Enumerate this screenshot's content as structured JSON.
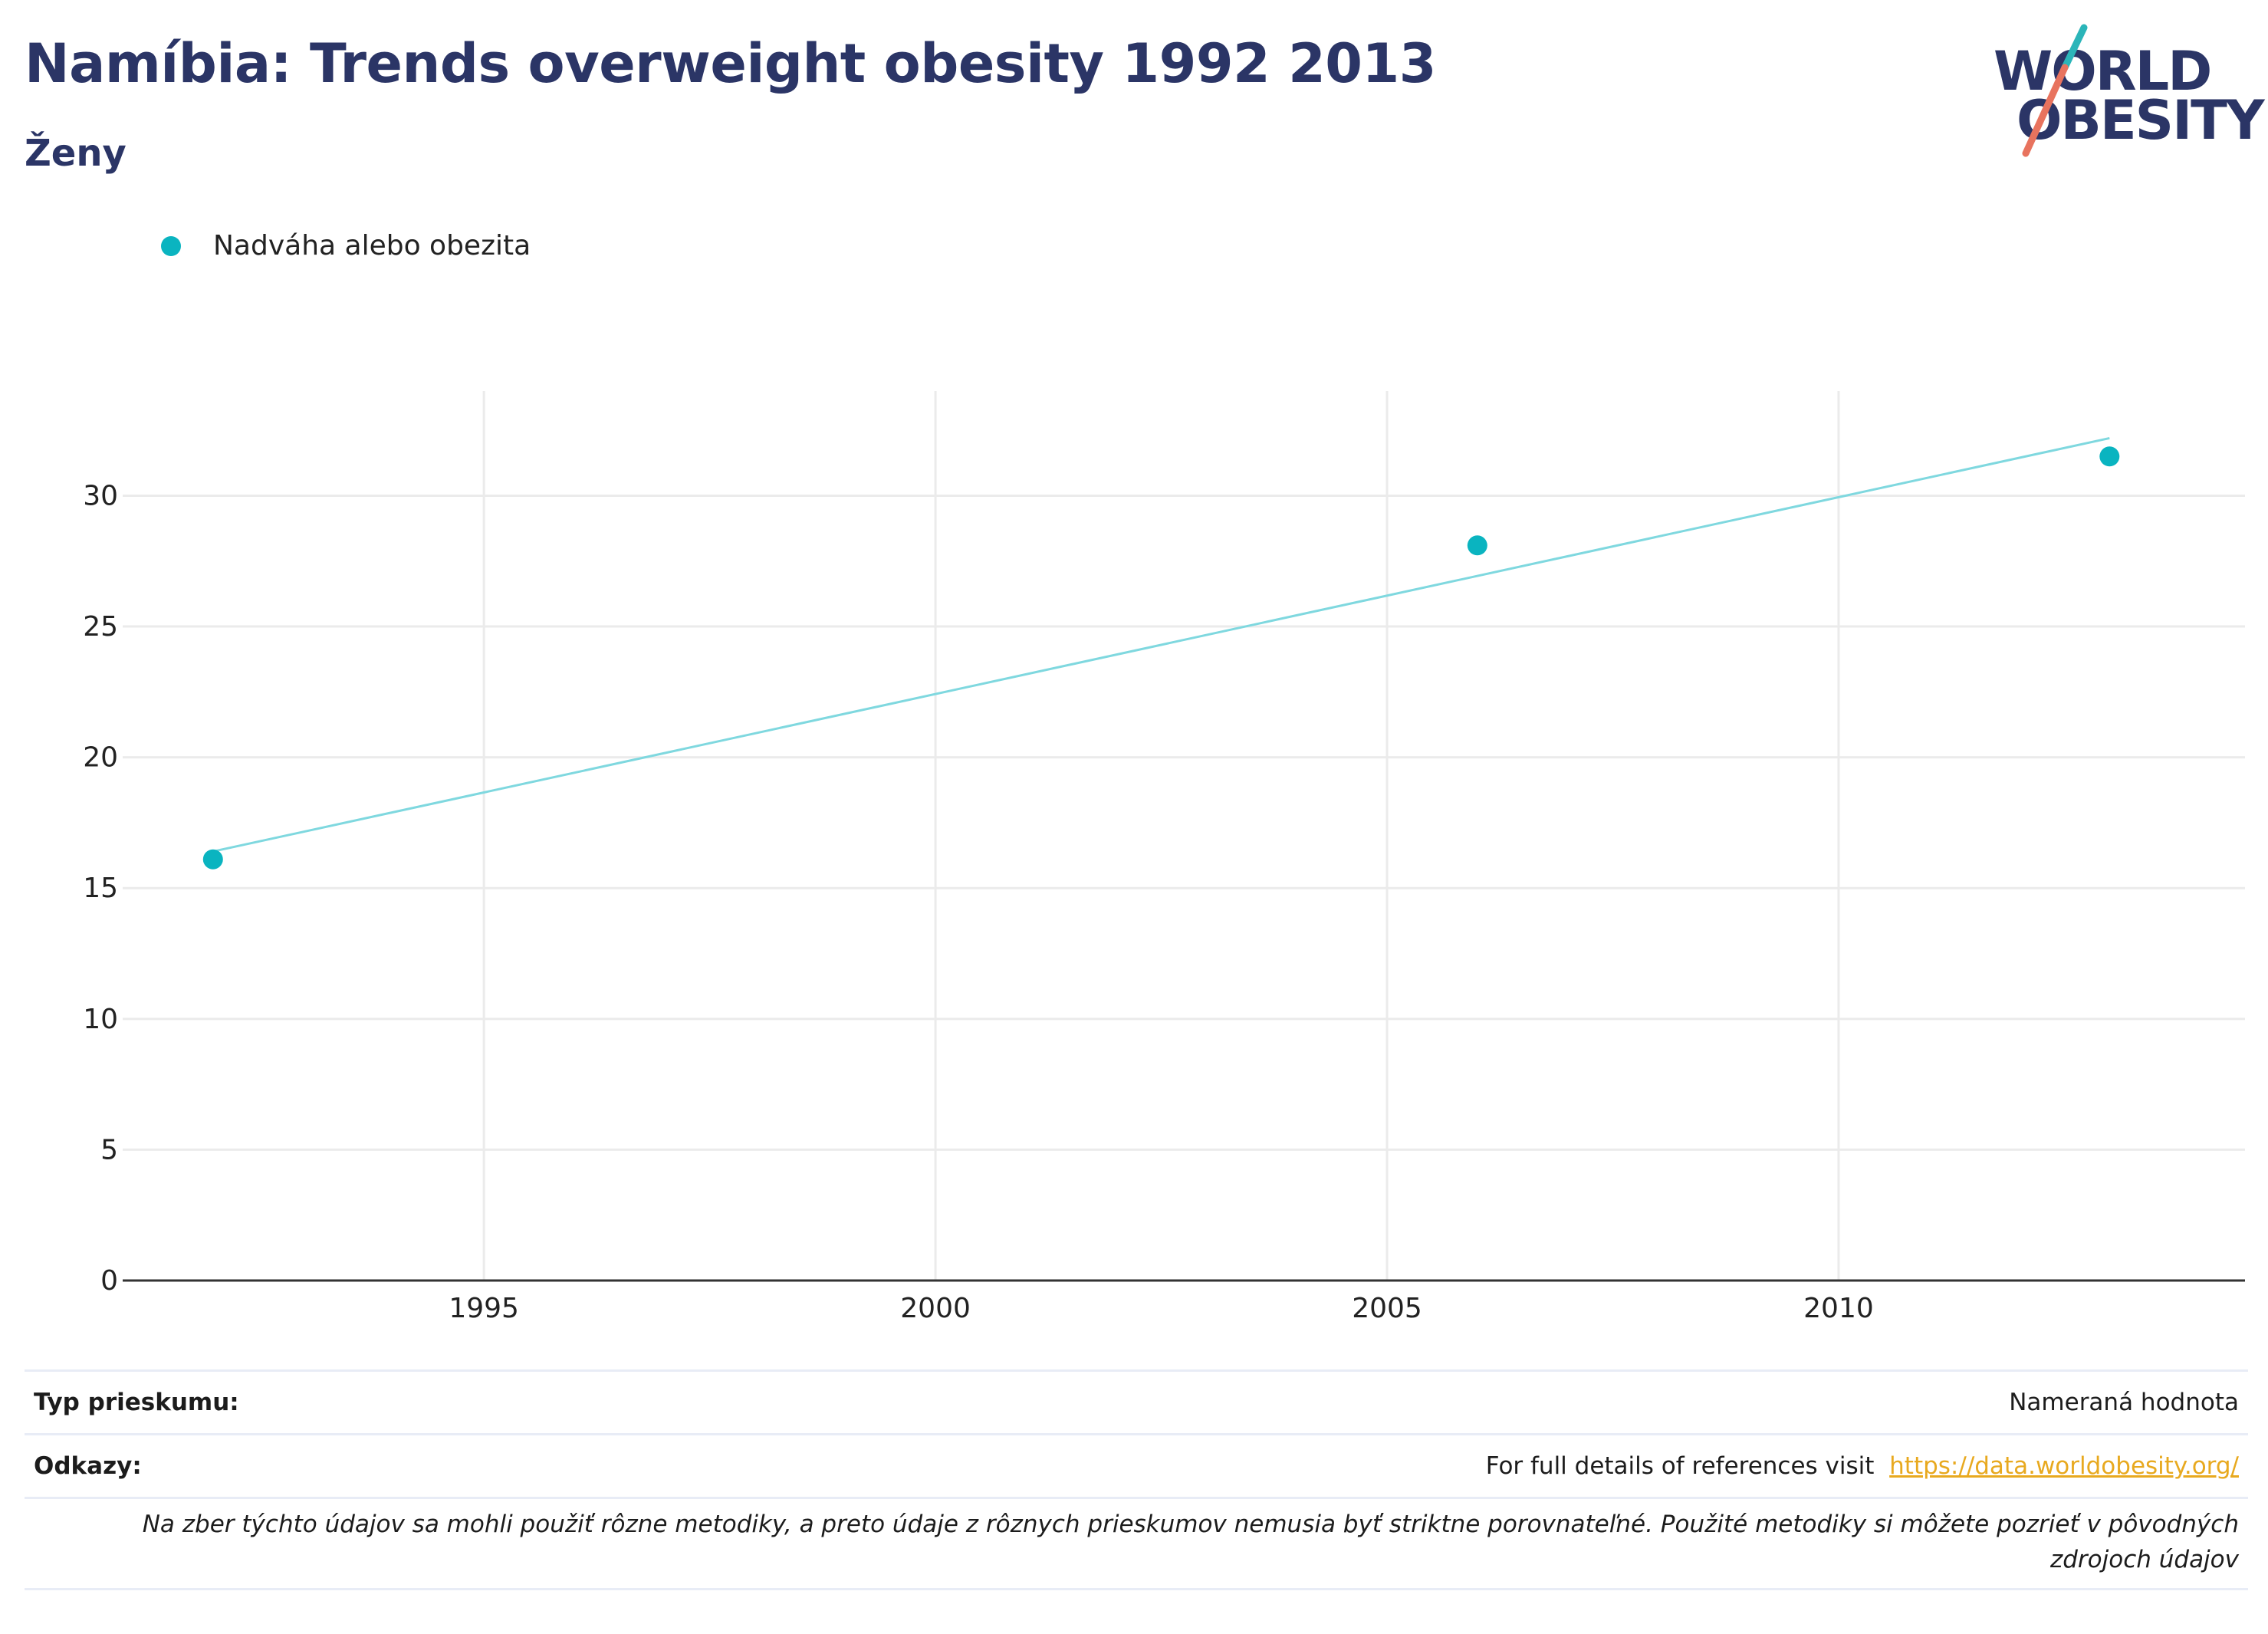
{
  "header": {
    "title": "Namíbia: Trends overweight obesity 1992 2013",
    "subtitle": "Ženy"
  },
  "logo": {
    "line1": "WORLD",
    "line2": "OBESITY"
  },
  "legend": {
    "label": "Nadváha alebo obezita",
    "color": "#0ab4c0"
  },
  "chart_data": {
    "type": "scatter",
    "title": "Namíbia: Trends overweight obesity 1992 2013",
    "subtitle": "Ženy",
    "xlabel": "",
    "ylabel": "",
    "xlim": [
      1991,
      2014.5
    ],
    "ylim": [
      0,
      34
    ],
    "x_ticks": [
      1995,
      2000,
      2005,
      2010
    ],
    "y_ticks": [
      0,
      5,
      10,
      15,
      20,
      25,
      30
    ],
    "grid": true,
    "legend_position": "top-left",
    "series": [
      {
        "name": "Nadváha alebo obezita",
        "color": "#0ab4c0",
        "points": [
          {
            "x": 1992,
            "y": 16.1
          },
          {
            "x": 2006,
            "y": 28.1
          },
          {
            "x": 2013,
            "y": 31.5
          }
        ]
      }
    ],
    "trendline": {
      "color": "#7fd8df",
      "start": {
        "x": 1992,
        "y": 16.4
      },
      "end": {
        "x": 2013,
        "y": 32.2
      }
    }
  },
  "footer": {
    "survey_label": "Typ prieskumu:",
    "survey_value": "Nameraná hodnota",
    "refs_label": "Odkazy:",
    "refs_text": "For full details of references visit ",
    "refs_link": "https://data.worldobesity.org/",
    "note": "Na zber týchto údajov sa mohli použiť rôzne metodiky, a preto údaje z rôznych prieskumov nemusia byť striktne porovnateľné. Použité metodiky si môžete pozrieť v pôvodných zdrojoch údajov"
  }
}
